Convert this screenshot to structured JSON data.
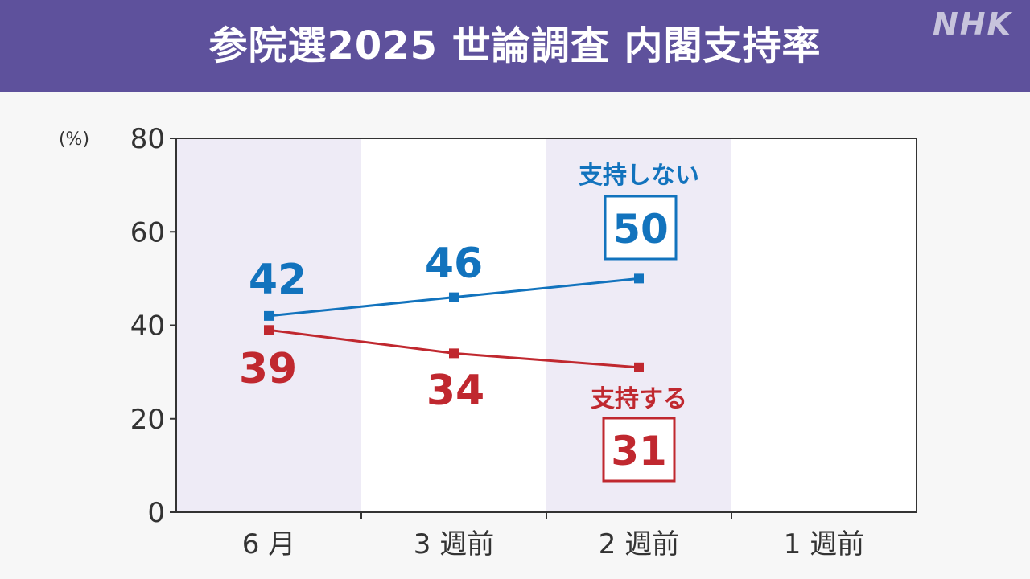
{
  "header": {
    "title": "参院選2025 世論調査 内閣支持率",
    "logo": "NHK"
  },
  "colors": {
    "header_bg": "#5e519c",
    "plot_shade": "#eeebf6",
    "not_support": "#1273bd",
    "support": "#c0282f"
  },
  "chart_data": {
    "type": "line",
    "title": "参院選2025 世論調査 内閣支持率",
    "ylabel": "(%)",
    "xlabel": "",
    "ylim": [
      0,
      80
    ],
    "yticks": [
      0,
      20,
      40,
      60,
      80
    ],
    "categories": [
      "6 月",
      "3 週前",
      "2 週前",
      "1 週前"
    ],
    "series": [
      {
        "name": "支持しない",
        "color": "#1273bd",
        "values": [
          42,
          46,
          50,
          null
        ]
      },
      {
        "name": "支持する",
        "color": "#c0282f",
        "values": [
          39,
          34,
          31,
          null
        ]
      }
    ],
    "latest_boxed": {
      "支持しない": 50,
      "支持する": 31
    },
    "grid": false
  }
}
